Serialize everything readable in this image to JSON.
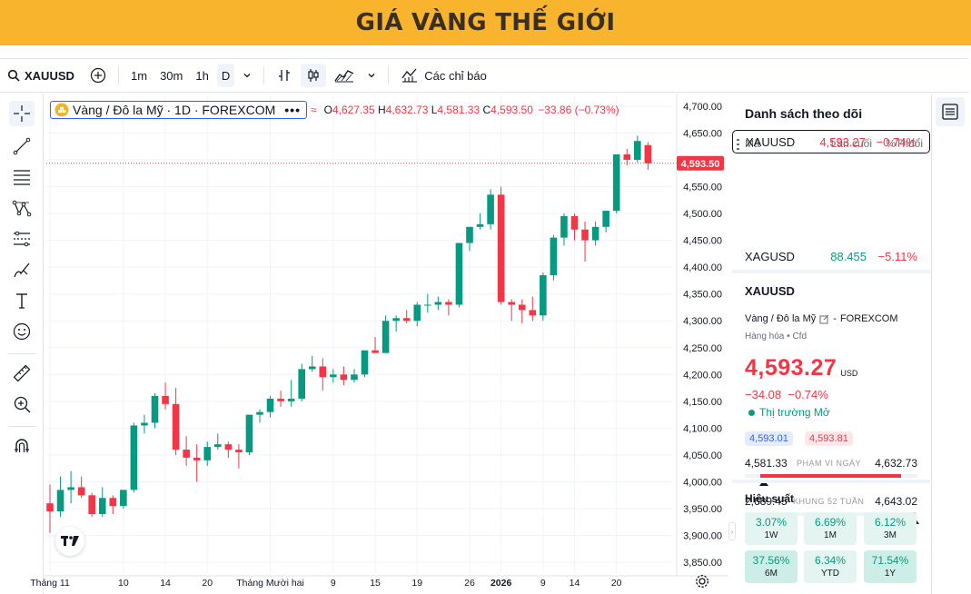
{
  "banner": {
    "title": "GIÁ VÀNG THẾ GIỚI"
  },
  "topbar": {
    "symbol": "XAUUSD",
    "intervals": [
      "1m",
      "30m",
      "1h",
      "D"
    ],
    "indicators_label": "Các chỉ báo"
  },
  "legend": {
    "title": "Vàng / Đô la Mỹ · 1D · FOREXCOM",
    "o_label": "O",
    "o": "4,627.35",
    "h_label": "H",
    "h": "4,632.73",
    "l_label": "L",
    "l": "4,581.33",
    "c_label": "C",
    "c": "4,593.50",
    "change": "−33.86 (−0.73%)"
  },
  "price_tag": "4,593.50",
  "chart_data": {
    "type": "candlestick",
    "y_ticks": [
      "4,700.00",
      "4,650.00",
      "4,600.00",
      "4,550.00",
      "4,500.00",
      "4,450.00",
      "4,400.00",
      "4,350.00",
      "4,300.00",
      "4,250.00",
      "4,200.00",
      "4,150.00",
      "4,100.00",
      "4,050.00",
      "4,000.00",
      "3,950.00",
      "3,900.00",
      "3,850.00"
    ],
    "y_values": [
      4700,
      4650,
      4600,
      4550,
      4500,
      4450,
      4400,
      4350,
      4300,
      4250,
      4200,
      4150,
      4100,
      4050,
      4000,
      3950,
      3900,
      3850
    ],
    "x_ticks": [
      {
        "label": "Tháng 11",
        "i": 0
      },
      {
        "label": "10",
        "i": 7
      },
      {
        "label": "14",
        "i": 11
      },
      {
        "label": "20",
        "i": 15
      },
      {
        "label": "Tháng Mười hai",
        "i": 21
      },
      {
        "label": "9",
        "i": 27
      },
      {
        "label": "15",
        "i": 31
      },
      {
        "label": "19",
        "i": 35
      },
      {
        "label": "26",
        "i": 40
      },
      {
        "label": "2026",
        "i": 43
      },
      {
        "label": "9",
        "i": 47
      },
      {
        "label": "14",
        "i": 50
      },
      {
        "label": "20",
        "i": 54
      }
    ],
    "candles": [
      [
        3960,
        3995,
        3905,
        3945
      ],
      [
        3945,
        4010,
        3935,
        3985
      ],
      [
        3985,
        4020,
        3960,
        3990
      ],
      [
        3990,
        4010,
        3970,
        3975
      ],
      [
        3975,
        3980,
        3935,
        3940
      ],
      [
        3940,
        3990,
        3935,
        3970
      ],
      [
        3970,
        3975,
        3940,
        3955
      ],
      [
        3955,
        3985,
        3950,
        3985
      ],
      [
        3985,
        4110,
        3980,
        4105
      ],
      [
        4105,
        4125,
        4090,
        4110
      ],
      [
        4110,
        4165,
        4100,
        4160
      ],
      [
        4160,
        4185,
        4135,
        4145
      ],
      [
        4145,
        4175,
        4050,
        4060
      ],
      [
        4060,
        4085,
        4030,
        4045
      ],
      [
        4045,
        4070,
        4000,
        4040
      ],
      [
        4040,
        4075,
        4030,
        4065
      ],
      [
        4065,
        4090,
        4060,
        4070
      ],
      [
        4070,
        4075,
        4045,
        4060
      ],
      [
        4060,
        4070,
        4025,
        4055
      ],
      [
        4055,
        4125,
        4050,
        4125
      ],
      [
        4125,
        4135,
        4110,
        4130
      ],
      [
        4130,
        4160,
        4120,
        4155
      ],
      [
        4155,
        4170,
        4140,
        4150
      ],
      [
        4150,
        4190,
        4140,
        4155
      ],
      [
        4155,
        4220,
        4150,
        4210
      ],
      [
        4210,
        4235,
        4205,
        4215
      ],
      [
        4215,
        4230,
        4170,
        4195
      ],
      [
        4195,
        4210,
        4185,
        4200
      ],
      [
        4200,
        4215,
        4180,
        4190
      ],
      [
        4190,
        4210,
        4185,
        4200
      ],
      [
        4200,
        4245,
        4195,
        4245
      ],
      [
        4245,
        4270,
        4240,
        4240
      ],
      [
        4240,
        4310,
        4240,
        4300
      ],
      [
        4300,
        4310,
        4280,
        4305
      ],
      [
        4305,
        4320,
        4295,
        4300
      ],
      [
        4300,
        4335,
        4290,
        4330
      ],
      [
        4330,
        4350,
        4315,
        4330
      ],
      [
        4330,
        4345,
        4320,
        4335
      ],
      [
        4335,
        4340,
        4310,
        4330
      ],
      [
        4330,
        4445,
        4325,
        4445
      ],
      [
        4445,
        4475,
        4430,
        4475
      ],
      [
        4475,
        4500,
        4470,
        4480
      ],
      [
        4480,
        4545,
        4470,
        4535
      ],
      [
        4535,
        4550,
        4330,
        4335
      ],
      [
        4335,
        4340,
        4300,
        4330
      ],
      [
        4330,
        4340,
        4295,
        4320
      ],
      [
        4320,
        4345,
        4300,
        4310
      ],
      [
        4310,
        4390,
        4300,
        4385
      ],
      [
        4385,
        4460,
        4375,
        4455
      ],
      [
        4455,
        4500,
        4440,
        4495
      ],
      [
        4495,
        4500,
        4450,
        4470
      ],
      [
        4470,
        4485,
        4410,
        4450
      ],
      [
        4450,
        4485,
        4440,
        4475
      ],
      [
        4475,
        4500,
        4465,
        4505
      ],
      [
        4505,
        4610,
        4500,
        4610
      ],
      [
        4610,
        4620,
        4590,
        4600
      ],
      [
        4600,
        4645,
        4595,
        4635
      ],
      [
        4627.35,
        4632.73,
        4581.33,
        4593.5
      ]
    ],
    "last_price": 4593.5,
    "ylim": [
      3830,
      4720
    ]
  },
  "watchlist": {
    "title": "Danh sách theo dõi",
    "col_symbol": "Mã",
    "col_last": "Lần cuối",
    "col_change": "%Thđổi",
    "rows": [
      {
        "symbol": "XAUUSD",
        "last": "4,593.27",
        "change": "−0.74%"
      },
      {
        "symbol": "XAGUSD",
        "last": "88.455",
        "change": "−5.11%"
      }
    ]
  },
  "details": {
    "symbol": "XAUUSD",
    "name": "Vàng / Đô la Mỹ",
    "exchange": "FOREXCOM",
    "category": "Hàng hóa",
    "type": "Cfd",
    "price": "4,593.27",
    "currency": "USD",
    "change": "−34.08",
    "change_pct": "−0.74%",
    "market_status": "Thị trường Mở",
    "bid": "4,593.01",
    "ask": "4,593.81",
    "day_low": "4,581.33",
    "day_high": "4,632.73",
    "day_label": "PHẠM VI NGÀY",
    "day_pos": 0.09,
    "week_low": "2,689.45",
    "week_high": "4,643.02",
    "week_label": "KHUNG 52 TUẦN",
    "week_pos": 0.99
  },
  "performance": {
    "title": "Hiệu suất",
    "items": [
      {
        "value": "3.07%",
        "period": "1W"
      },
      {
        "value": "6.69%",
        "period": "1M"
      },
      {
        "value": "6.12%",
        "period": "3M"
      },
      {
        "value": "37.56%",
        "period": "6M"
      },
      {
        "value": "6.34%",
        "period": "YTD"
      },
      {
        "value": "71.54%",
        "period": "1Y"
      }
    ]
  }
}
